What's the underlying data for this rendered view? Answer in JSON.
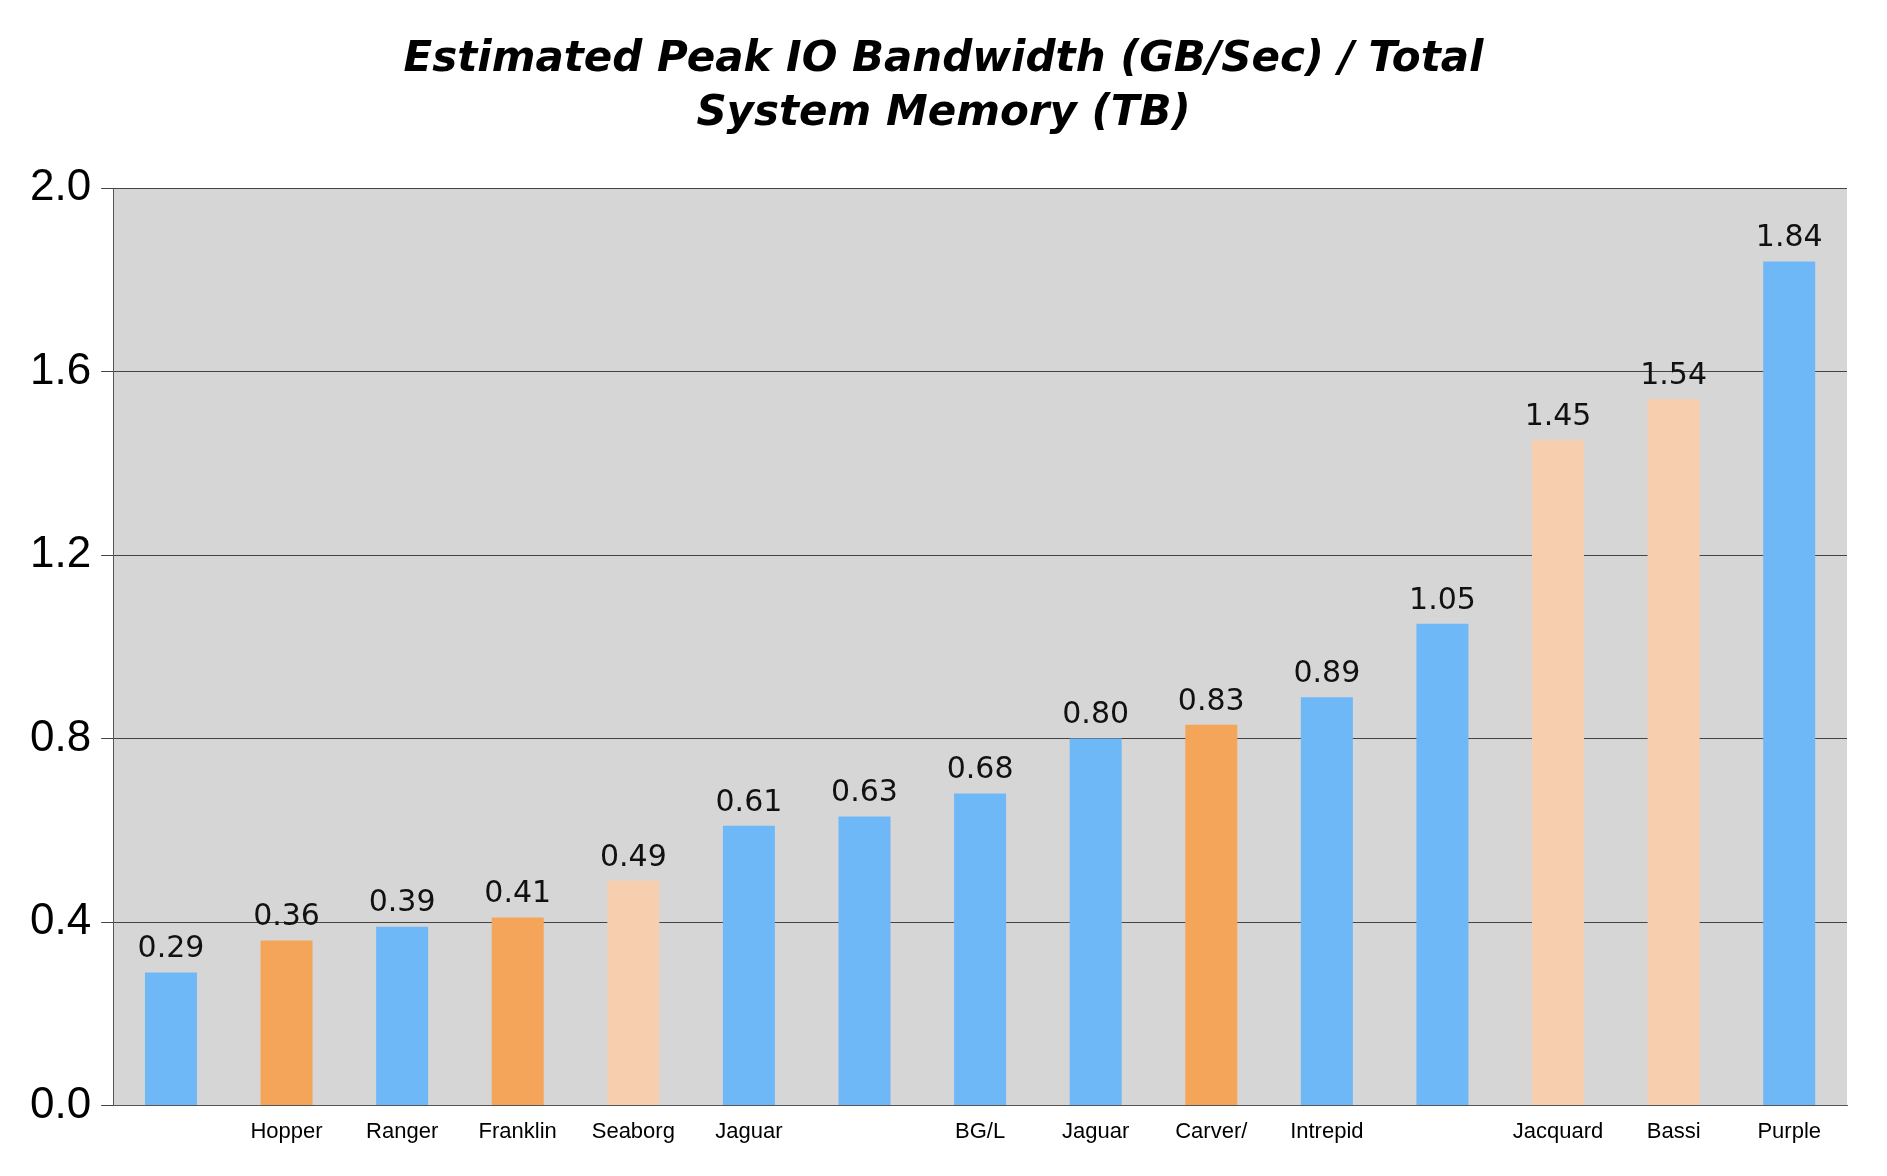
{
  "chart_data": {
    "type": "bar",
    "title": "Estimated Peak IO Bandwidth (GB/Sec) / Total System Memory (TB)",
    "categories": [
      null,
      "Hopper",
      "Ranger",
      "Franklin",
      "Seaborg",
      "Jaguar",
      null,
      "BG/L",
      "Jaguar",
      "Carver/",
      "Intrepid",
      null,
      "Jacquard",
      "Bassi",
      "Purple"
    ],
    "values": [
      0.29,
      0.36,
      0.39,
      0.41,
      0.49,
      0.61,
      0.63,
      0.68,
      0.8,
      0.83,
      0.89,
      1.05,
      1.45,
      1.54,
      1.84
    ],
    "colors": [
      "#6fb8f8",
      "#f5a55a",
      "#6fb8f8",
      "#f5a55a",
      "#f8cfae",
      "#6fb8f8",
      "#6fb8f8",
      "#6fb8f8",
      "#6fb8f8",
      "#f5a55a",
      "#6fb8f8",
      "#6fb8f8",
      "#f8cfae",
      "#f8cfae",
      "#6fb8f8"
    ],
    "ylim": [
      0,
      2
    ],
    "yticks": [
      {
        "value": 0,
        "label": "0.0"
      },
      {
        "value": 0.4,
        "label": "0.4"
      },
      {
        "value": 0.8,
        "label": "0.8"
      },
      {
        "value": 1.2,
        "label": "1.2"
      },
      {
        "value": 1.6,
        "label": "1.6"
      },
      {
        "value": 2,
        "label": "2.0"
      }
    ],
    "value_labels": [
      "0.29",
      "0.36",
      "0.39",
      "0.41",
      "0.49",
      "0.61",
      "0.63",
      "0.68",
      "0.80",
      "0.83",
      "0.89",
      "1.05",
      "1.45",
      "1.54",
      "1.84"
    ],
    "grid": "y"
  }
}
